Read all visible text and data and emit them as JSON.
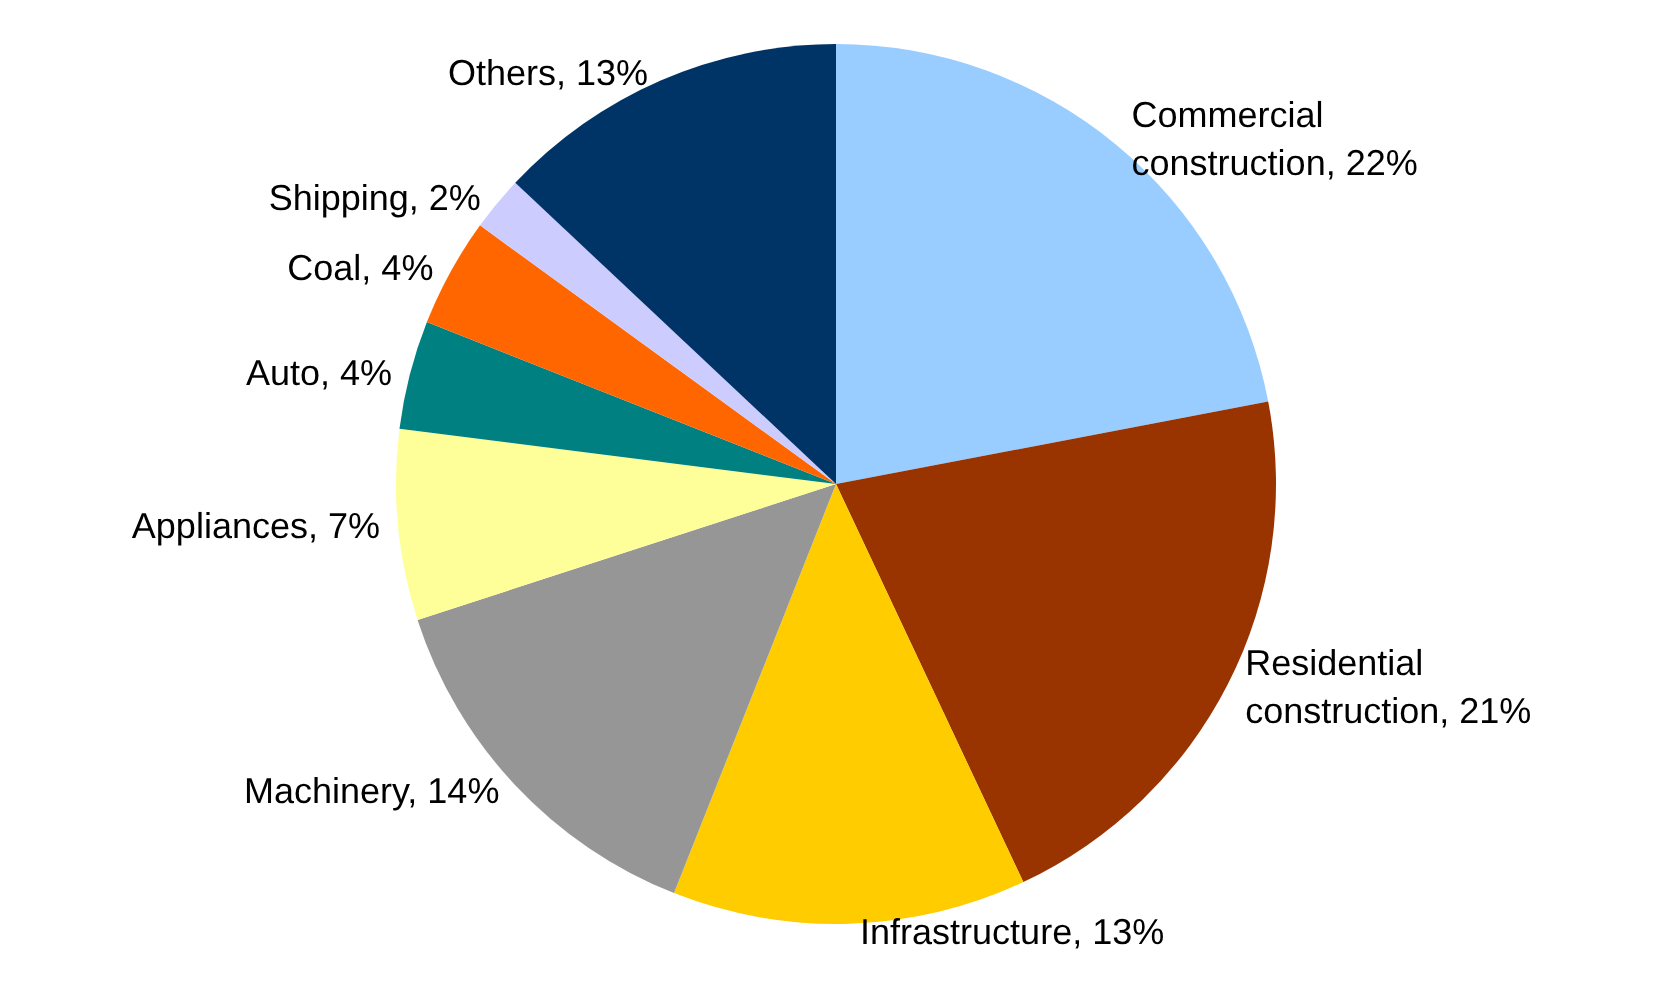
{
  "chart_data": {
    "type": "pie",
    "categories": [
      "Commercial construction",
      "Residential construction",
      "Infrastructure",
      "Machinery",
      "Appliances",
      "Auto",
      "Coal",
      "Shipping",
      "Others"
    ],
    "values": [
      22,
      21,
      13,
      14,
      7,
      4,
      4,
      2,
      13
    ],
    "value_labels": [
      "22%",
      "21%",
      "13%",
      "14%",
      "7%",
      "4%",
      "4%",
      "2%",
      "13%"
    ],
    "colors": [
      "#99ccff",
      "#993300",
      "#ffcc00",
      "#969696",
      "#ffff99",
      "#008080",
      "#ff6600",
      "#ccccff",
      "#003366"
    ]
  }
}
